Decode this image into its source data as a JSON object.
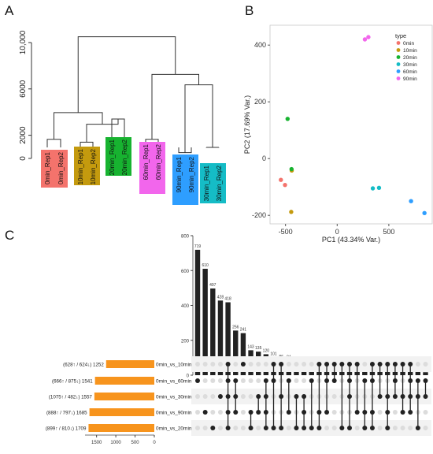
{
  "panels": {
    "a": {
      "letter": "A"
    },
    "b": {
      "letter": "B"
    },
    "c": {
      "letter": "C"
    }
  },
  "chart_data": [
    {
      "type": "dendrogram",
      "ylim": [
        0,
        11000
      ],
      "yticks": [
        0,
        2000,
        6000,
        10000
      ],
      "ytick_labels": [
        "0",
        "2000",
        "6000",
        "10,000"
      ],
      "leaves": [
        {
          "label": "0min_Rep1",
          "group": "0min"
        },
        {
          "label": "0min_Rep2",
          "group": "0min"
        },
        {
          "label": "10min_Rep1",
          "group": "10min"
        },
        {
          "label": "10min_Rep2",
          "group": "10min"
        },
        {
          "label": "20min_Rep1",
          "group": "20min"
        },
        {
          "label": "20min_Rep2",
          "group": "20min"
        },
        {
          "label": "60min_Rep1",
          "group": "60min"
        },
        {
          "label": "60min_Rep2",
          "group": "60min"
        },
        {
          "label": "90min_Rep1",
          "group": "90min"
        },
        {
          "label": "90min_Rep2",
          "group": "90min"
        },
        {
          "label": "30min_Rep1",
          "group": "30min"
        },
        {
          "label": "30min_Rep2",
          "group": "30min"
        }
      ],
      "merges": [
        {
          "left": "L0",
          "right": "L1",
          "height": 1650
        },
        {
          "left": "L2",
          "right": "L3",
          "height": 1400
        },
        {
          "left": "L4",
          "right": "L5",
          "height": 3400
        },
        {
          "left": "L6",
          "right": "L7",
          "height": 1650
        },
        {
          "left": "L8",
          "right": "L9",
          "height": 500
        },
        {
          "left": "L10",
          "right": "L11",
          "height": 950
        },
        {
          "left": "M1",
          "right": "M2",
          "height": 2950
        },
        {
          "left": "M0",
          "right": "M6",
          "height": 3950
        },
        {
          "left": "M4",
          "right": "M5",
          "height": 6350
        },
        {
          "left": "M3",
          "right": "M8",
          "height": 7250
        },
        {
          "left": "M7",
          "right": "M9",
          "height": 10500
        }
      ],
      "group_colors": {
        "0min": "#f4736c",
        "10min": "#c49a0e",
        "20min": "#17b330",
        "60min": "#f266ec",
        "90min": "#2e9eff",
        "30min": "#15bcc6"
      }
    },
    {
      "type": "scatter",
      "xlabel": "PC1 (43.34% Var.)",
      "ylabel": "PC2 (17.69% Var.)",
      "xlim": [
        -650,
        920
      ],
      "ylim": [
        -230,
        470
      ],
      "xticks": [
        -500,
        0,
        500
      ],
      "yticks": [
        -200,
        0,
        200,
        400
      ],
      "legend_title": "type",
      "legend_position": "top-right",
      "series": [
        {
          "name": "0min",
          "color": "#f4736c",
          "points": [
            [
              -545,
              -75
            ],
            [
              -505,
              -93
            ]
          ]
        },
        {
          "name": "10min",
          "color": "#c49a0e",
          "points": [
            [
              -445,
              -188
            ],
            [
              -440,
              -42
            ]
          ]
        },
        {
          "name": "20min",
          "color": "#17b330",
          "points": [
            [
              -480,
              140
            ],
            [
              -442,
              -37
            ]
          ]
        },
        {
          "name": "30min",
          "color": "#15bcc6",
          "points": [
            [
              345,
              -105
            ],
            [
              405,
              -103
            ]
          ]
        },
        {
          "name": "60min",
          "color": "#2e9eff",
          "points": [
            [
              715,
              -150
            ],
            [
              845,
              -192
            ]
          ]
        },
        {
          "name": "90min",
          "color": "#f266ec",
          "points": [
            [
              268,
              420
            ],
            [
              302,
              428
            ]
          ]
        }
      ]
    },
    {
      "type": "upset",
      "intersection_ylim": [
        0,
        800
      ],
      "intersection_yticks": [
        0,
        200,
        400,
        600,
        800
      ],
      "set_xlim": [
        0,
        1800
      ],
      "set_xticks": [
        1500,
        1000,
        500,
        0
      ],
      "sets": [
        {
          "name": "0min_vs_10min",
          "label": "(628↑ / 624↓) 1252",
          "size": 1252
        },
        {
          "name": "0min_vs_60min",
          "label": "(666↑ / 875↓) 1541",
          "size": 1541
        },
        {
          "name": "0min_vs_30min",
          "label": "(1075↑ / 482↓) 1557",
          "size": 1557
        },
        {
          "name": "0min_vs_90min",
          "label": "(888↑ / 797↓) 1685",
          "size": 1685
        },
        {
          "name": "0min_vs_20min",
          "label": "(899↑ / 810↓) 1709",
          "size": 1709
        }
      ],
      "intersections": [
        {
          "value": 719,
          "sets": [
            1
          ]
        },
        {
          "value": 610,
          "sets": [
            3
          ]
        },
        {
          "value": 497,
          "sets": [
            4
          ]
        },
        {
          "value": 428,
          "sets": [
            2
          ]
        },
        {
          "value": 418,
          "sets": [
            0,
            1,
            2,
            3,
            4
          ]
        },
        {
          "value": 256,
          "sets": [
            1,
            2,
            3
          ]
        },
        {
          "value": 241,
          "sets": [
            0
          ]
        },
        {
          "value": 143,
          "sets": [
            3,
            4
          ]
        },
        {
          "value": 135,
          "sets": [
            2,
            3
          ]
        },
        {
          "value": 120,
          "sets": [
            1,
            2,
            3,
            4
          ]
        },
        {
          "value": 101,
          "sets": [
            0,
            1,
            4
          ]
        },
        {
          "value": 86,
          "sets": [
            0,
            2,
            4
          ]
        },
        {
          "value": 84,
          "sets": [
            1,
            3
          ]
        },
        {
          "value": 75,
          "sets": [
            2,
            4
          ]
        },
        {
          "value": 69,
          "sets": [
            2,
            3,
            4
          ]
        },
        {
          "value": 67,
          "sets": [
            1,
            4
          ]
        },
        {
          "value": 59,
          "sets": [
            0,
            3,
            4
          ]
        },
        {
          "value": 54,
          "sets": [
            0,
            1,
            3
          ]
        },
        {
          "value": 47,
          "sets": [
            0,
            1
          ]
        },
        {
          "value": 45,
          "sets": [
            0,
            4
          ]
        },
        {
          "value": 41,
          "sets": [
            0,
            1,
            2,
            4
          ]
        },
        {
          "value": 41,
          "sets": [
            0,
            3
          ]
        },
        {
          "value": 33,
          "sets": [
            1,
            3,
            4
          ]
        },
        {
          "value": 29,
          "sets": [
            0,
            1,
            3,
            4
          ]
        },
        {
          "value": 29,
          "sets": [
            0,
            2
          ]
        },
        {
          "value": 26,
          "sets": [
            0,
            2,
            3,
            4
          ]
        },
        {
          "value": 25,
          "sets": [
            0,
            1,
            2
          ]
        },
        {
          "value": 19,
          "sets": [
            0,
            2,
            3
          ]
        },
        {
          "value": 18,
          "sets": [
            0,
            1,
            2,
            3
          ]
        },
        {
          "value": 18,
          "sets": [
            1,
            2,
            4
          ]
        },
        {
          "value": 17,
          "sets": [
            1,
            2
          ]
        }
      ],
      "colors": {
        "set_bar": "#f7941d",
        "bar": "#222222",
        "dot_on": "#222222",
        "dot_off": "#dcdcdc"
      }
    }
  ]
}
